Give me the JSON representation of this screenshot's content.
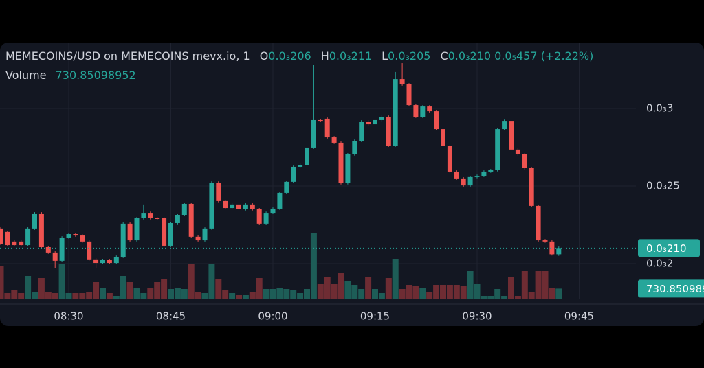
{
  "chart_data": {
    "type": "candlestick",
    "header": {
      "symbol": "MEMECOINS/USD on MEMECOINS mevx.io, 1",
      "ohlc": [
        {
          "key": "O",
          "value": "0.0₃206"
        },
        {
          "key": "H",
          "value": "0.0₃211"
        },
        {
          "key": "L",
          "value": "0.0₃205"
        },
        {
          "key": "C",
          "value": "0.0₃210"
        }
      ],
      "change": "0.0₅457",
      "change_pct": "(+2.22%)",
      "volume_label": "Volume"
    },
    "last_price_label": "0.0₃210",
    "x": [
      "08:20",
      "08:21",
      "08:22",
      "08:23",
      "08:24",
      "08:25",
      "08:26",
      "08:27",
      "08:28",
      "08:29",
      "08:30",
      "08:31",
      "08:32",
      "08:33",
      "08:34",
      "08:35",
      "08:36",
      "08:37",
      "08:38",
      "08:39",
      "08:40",
      "08:41",
      "08:42",
      "08:43",
      "08:44",
      "08:45",
      "08:46",
      "08:47",
      "08:48",
      "08:49",
      "08:50",
      "08:51",
      "08:52",
      "08:53",
      "08:54",
      "08:55",
      "08:56",
      "08:57",
      "08:58",
      "08:59",
      "09:00",
      "09:01",
      "09:02",
      "09:03",
      "09:04",
      "09:05",
      "09:06",
      "09:07",
      "09:08",
      "09:09",
      "09:10",
      "09:11",
      "09:12",
      "09:13",
      "09:14",
      "09:15",
      "09:16",
      "09:17",
      "09:18",
      "09:19",
      "09:20",
      "09:21",
      "09:22",
      "09:23",
      "09:24",
      "09:25",
      "09:26",
      "09:27",
      "09:28",
      "09:29",
      "09:30",
      "09:31",
      "09:32",
      "09:33",
      "09:34",
      "09:35",
      "09:36",
      "09:37",
      "09:38",
      "09:39",
      "09:40",
      "09:41",
      "09:42"
    ],
    "open": [
      0.0002226,
      0.0002204,
      0.0002142,
      0.0002142,
      0.0002119,
      0.0002226,
      0.0002323,
      0.0002106,
      0.0002071,
      0.0002018,
      0.0002168,
      0.000219,
      0.0002181,
      0.0002142,
      0.0002027,
      0.0002004,
      0.0002022,
      0.0002004,
      0.0002044,
      0.0002257,
      0.000215,
      0.0002292,
      0.0002327,
      0.0002292,
      0.0002292,
      0.0002115,
      0.0002261,
      0.0002314,
      0.0002385,
      0.0002173,
      0.000215,
      0.0002226,
      0.0002522,
      0.0002403,
      0.0002358,
      0.0002381,
      0.000235,
      0.0002381,
      0.000235,
      0.0002257,
      0.0002327,
      0.0002354,
      0.0002456,
      0.0002527,
      0.0002624,
      0.0002637,
      0.0002748,
      0.0002925,
      0.0002934,
      0.0002814,
      0.0002779,
      0.0002518,
      0.0002704,
      0.0002792,
      0.0002916,
      0.0002898,
      0.0002925,
      0.0002947,
      0.0002761,
      0.000319,
      0.0003155,
      0.0003022,
      0.0002947,
      0.0003013,
      0.0002982,
      0.0002867,
      0.0002757,
      0.0002593,
      0.0002549,
      0.0002504,
      0.0002558,
      0.0002566,
      0.0002593,
      0.0002602,
      0.0002867,
      0.000292,
      0.0002735,
      0.0002704,
      0.0002615,
      0.0002372,
      0.000215,
      0.0002142,
      0.000206
    ],
    "high": [
      0.0002234,
      0.0002212,
      0.000215,
      0.000215,
      0.0002234,
      0.0002331,
      0.0002331,
      0.0002114,
      0.0002079,
      0.0002176,
      0.0002198,
      0.0002198,
      0.0002189,
      0.000215,
      0.0002035,
      0.000203,
      0.000203,
      0.0002052,
      0.0002265,
      0.0002265,
      0.00023,
      0.0002381,
      0.0002335,
      0.00023,
      0.00023,
      0.0002269,
      0.0002322,
      0.0002393,
      0.0002393,
      0.0002181,
      0.0002234,
      0.000253,
      0.000253,
      0.0002411,
      0.0002389,
      0.0002389,
      0.0002389,
      0.0002389,
      0.0002358,
      0.0002335,
      0.0002362,
      0.0002464,
      0.0002535,
      0.0002632,
      0.0002645,
      0.0002756,
      0.0003279,
      0.0002933,
      0.0002942,
      0.0002822,
      0.0002787,
      0.0002712,
      0.00028,
      0.0002924,
      0.0002924,
      0.0002933,
      0.0002955,
      0.0002955,
      0.0003235,
      0.0003292,
      0.0003163,
      0.000303,
      0.0003021,
      0.0003021,
      0.000299,
      0.0002875,
      0.0002765,
      0.0002601,
      0.0002557,
      0.0002566,
      0.0002574,
      0.0002601,
      0.000261,
      0.0002875,
      0.0002928,
      0.0002928,
      0.0002743,
      0.0002712,
      0.0002623,
      0.000238,
      0.0002158,
      0.000215,
      0.000211
    ],
    "low": [
      0.000212,
      0.0002111,
      0.0002111,
      0.0002111,
      0.0002111,
      0.0002218,
      0.0002098,
      0.0002063,
      0.0001973,
      0.000201,
      0.000216,
      0.0002173,
      0.0002134,
      0.0002019,
      0.000197,
      0.0001996,
      0.0001996,
      0.0001996,
      0.0002036,
      0.0002142,
      0.0002142,
      0.0002284,
      0.0002284,
      0.000228,
      0.0002107,
      0.0002107,
      0.0002253,
      0.0002306,
      0.0002165,
      0.0002142,
      0.0002142,
      0.0002218,
      0.0002395,
      0.000235,
      0.000235,
      0.0002342,
      0.0002342,
      0.0002342,
      0.0002249,
      0.0002249,
      0.0002319,
      0.0002346,
      0.0002448,
      0.0002519,
      0.0002616,
      0.0002629,
      0.000274,
      0.0002912,
      0.0002806,
      0.0002771,
      0.000251,
      0.000251,
      0.0002696,
      0.0002784,
      0.000289,
      0.000289,
      0.0002917,
      0.0002753,
      0.0002753,
      0.0003147,
      0.0003014,
      0.0002939,
      0.0002939,
      0.0002974,
      0.0002859,
      0.0002749,
      0.0002585,
      0.0002541,
      0.0002496,
      0.0002496,
      0.000255,
      0.0002558,
      0.0002585,
      0.0002594,
      0.0002859,
      0.0002727,
      0.0002696,
      0.0002607,
      0.0002364,
      0.0002142,
      0.0002134,
      0.0002052,
      0.000205
    ],
    "close": [
      0.0002128,
      0.0002119,
      0.0002119,
      0.0002119,
      0.0002226,
      0.0002323,
      0.0002106,
      0.0002071,
      0.0002018,
      0.0002168,
      0.000219,
      0.0002181,
      0.0002142,
      0.0002027,
      0.0002004,
      0.0002022,
      0.0002004,
      0.0002044,
      0.0002257,
      0.000215,
      0.0002292,
      0.0002327,
      0.0002292,
      0.0002288,
      0.0002115,
      0.0002261,
      0.0002314,
      0.0002385,
      0.0002173,
      0.000215,
      0.0002226,
      0.0002522,
      0.0002403,
      0.0002358,
      0.0002381,
      0.000235,
      0.0002381,
      0.000235,
      0.0002257,
      0.0002327,
      0.0002354,
      0.0002456,
      0.0002527,
      0.0002624,
      0.0002637,
      0.0002748,
      0.0002925,
      0.000292,
      0.0002814,
      0.0002779,
      0.0002518,
      0.0002704,
      0.0002792,
      0.0002916,
      0.0002898,
      0.0002925,
      0.0002947,
      0.0002761,
      0.000319,
      0.0003155,
      0.0003022,
      0.0002947,
      0.0003013,
      0.0002982,
      0.0002867,
      0.0002757,
      0.0002593,
      0.0002549,
      0.0002504,
      0.0002558,
      0.0002566,
      0.0002593,
      0.0002602,
      0.0002867,
      0.000292,
      0.0002735,
      0.0002704,
      0.0002615,
      0.0002372,
      0.000215,
      0.0002142,
      0.000206,
      0.00021
    ],
    "volume": [
      2400,
      400,
      600,
      400,
      1650,
      500,
      1500,
      500,
      400,
      2500,
      400,
      400,
      400,
      500,
      1200,
      800,
      400,
      200,
      1650,
      1200,
      800,
      400,
      800,
      1200,
      1400,
      700,
      800,
      700,
      2500,
      500,
      400,
      2500,
      1400,
      600,
      400,
      300,
      300,
      500,
      1500,
      700,
      700,
      800,
      700,
      600,
      400,
      700,
      4750,
      1100,
      1600,
      1100,
      1900,
      1250,
      1000,
      700,
      1600,
      700,
      400,
      1500,
      2900,
      700,
      1000,
      900,
      800,
      500,
      1000,
      1000,
      1000,
      1000,
      900,
      2000,
      1100,
      200,
      200,
      700,
      200,
      1600,
      200,
      2000,
      500,
      2000,
      2000,
      800,
      730.85098952
    ],
    "colors": {
      "up": "#26a69a",
      "down": "#ef5350",
      "up_volume": "#1d5d57",
      "down_volume": "#6e2c33"
    },
    "ylim": [
      0.0001774,
      0.0003425
    ],
    "yticks": [
      {
        "value": 0.0002,
        "label": "0.0₃2"
      },
      {
        "value": 0.00025,
        "label": "0.0₃25"
      },
      {
        "value": 0.0003,
        "label": "0.0₃3"
      }
    ],
    "y2lim": [
      0,
      5000
    ],
    "xticks": [
      "08:30",
      "08:45",
      "09:00",
      "09:15",
      "09:30",
      "09:45"
    ],
    "grid": true
  }
}
